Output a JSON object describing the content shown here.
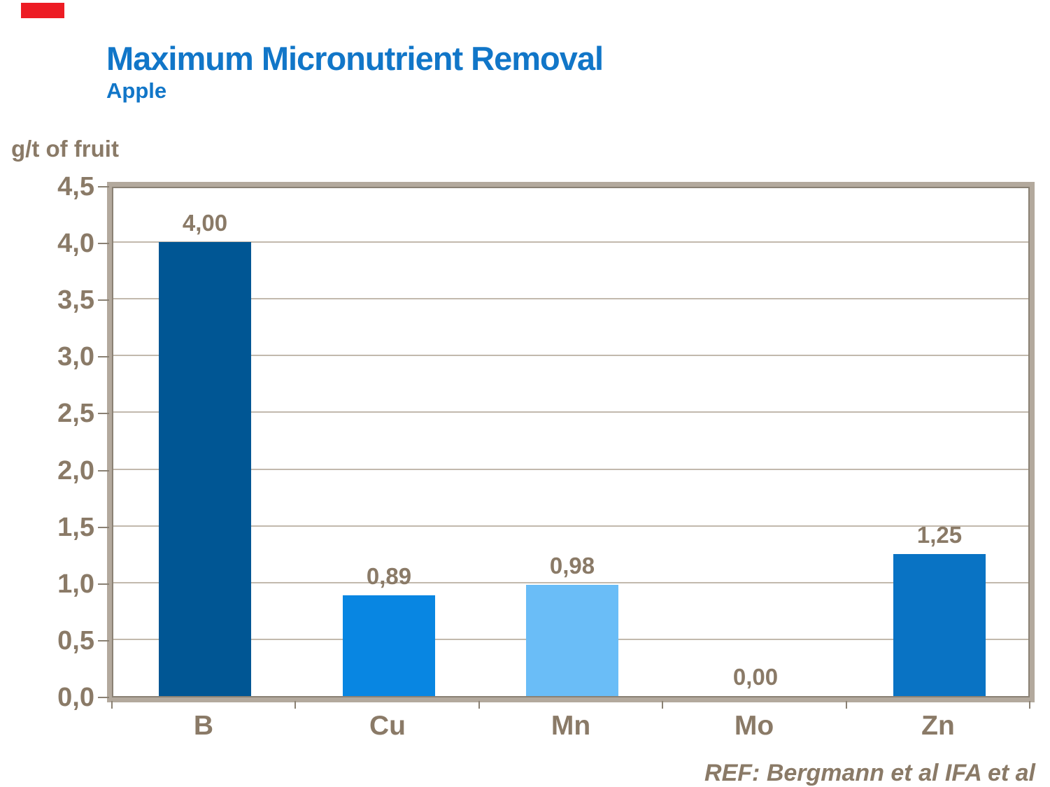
{
  "slide": {
    "background": "#FFFFFF",
    "accent_bar_color": "#ED1C24"
  },
  "header": {
    "title": "Maximum Micronutrient Removal",
    "subtitle": "Apple",
    "title_color": "#1176C8"
  },
  "footer": {
    "reference": "REF: Bergmann et al IFA et al"
  },
  "chart_data": {
    "type": "bar",
    "title": "Maximum Micronutrient Removal",
    "subtitle": "Apple",
    "ylabel": "g/t of fruit",
    "xlabel": "",
    "categories": [
      "B",
      "Cu",
      "Mn",
      "Mo",
      "Zn"
    ],
    "values": [
      4.0,
      0.89,
      0.98,
      0.0,
      1.25
    ],
    "value_labels": [
      "4,00",
      "0,89",
      "0,98",
      "0,00",
      "1,25"
    ],
    "bar_colors": [
      "#005694",
      "#0886E2",
      "#6ABDF7",
      null,
      "#0973C4"
    ],
    "ylim": [
      0,
      4.5
    ],
    "y_ticks": [
      4.5,
      4.0,
      3.5,
      3.0,
      2.5,
      2.0,
      1.5,
      1.0,
      0.5,
      0.0
    ],
    "y_tick_labels": [
      "4,5",
      "4,0",
      "3,5",
      "3,0",
      "2,5",
      "2,0",
      "1,5",
      "1,0",
      "0,5",
      "0,0"
    ],
    "grid": true,
    "legend": false,
    "text_color": "#8A7A67",
    "frame_color": "#B3A99D",
    "reference": "REF: Bergmann et al IFA et al"
  }
}
